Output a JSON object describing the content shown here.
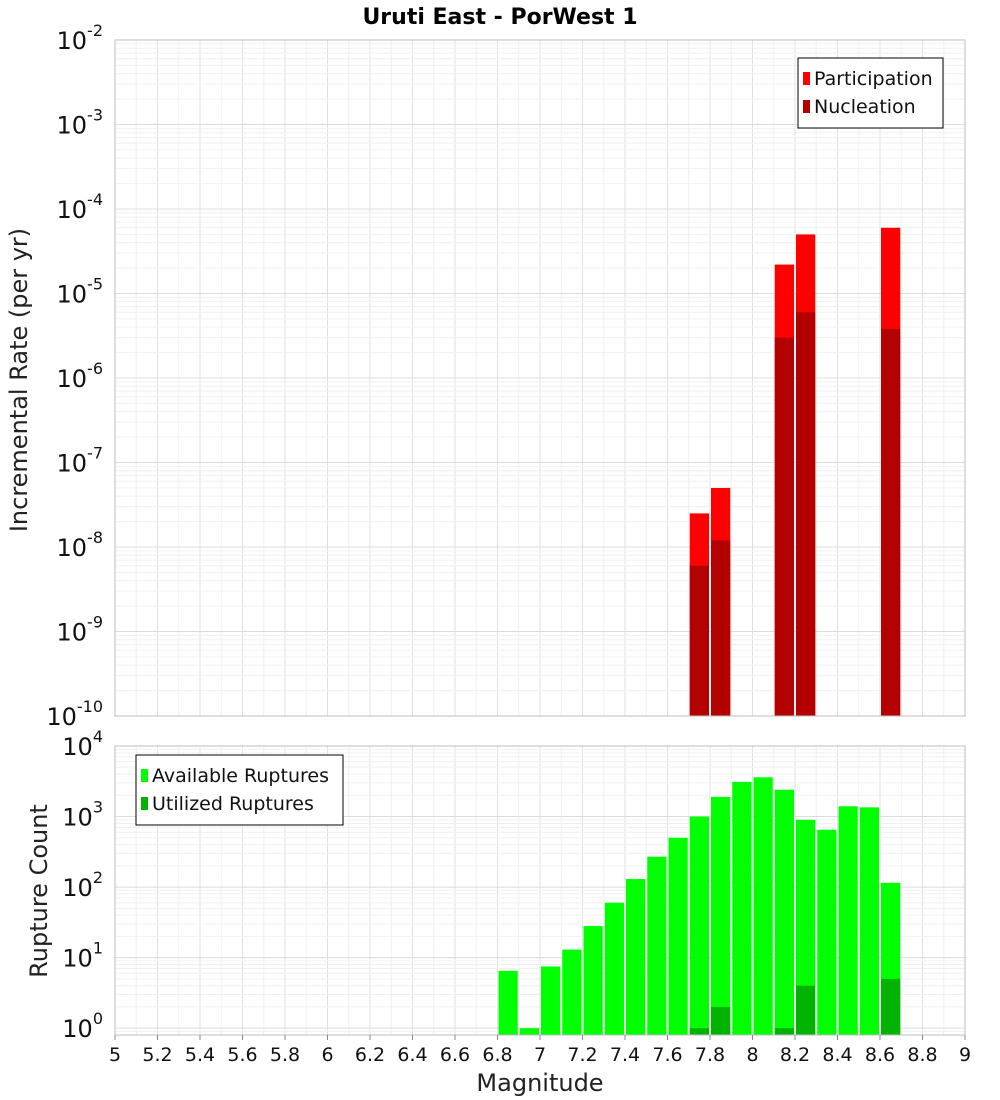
{
  "title": "Uruti East - PorWest 1",
  "colors": {
    "participation": "#ff0000",
    "nucleation": "#b30000",
    "available": "#00ff00",
    "utilized": "#00b300",
    "grid": "#e6e6e6",
    "frame": "#bdbdbd"
  },
  "chart_data": [
    {
      "type": "bar",
      "panel": "rates",
      "ylabel": "Incremental Rate (per yr)",
      "yscale": "log",
      "ylim": [
        1e-10,
        0.01
      ],
      "yticks": [
        {
          "base": "10",
          "exp": "-10"
        },
        {
          "base": "10",
          "exp": "-9"
        },
        {
          "base": "10",
          "exp": "-8"
        },
        {
          "base": "10",
          "exp": "-7"
        },
        {
          "base": "10",
          "exp": "-6"
        },
        {
          "base": "10",
          "exp": "-5"
        },
        {
          "base": "10",
          "exp": "-4"
        },
        {
          "base": "10",
          "exp": "-3"
        },
        {
          "base": "10",
          "exp": "-2"
        }
      ],
      "legend": {
        "position": "top-right",
        "items": [
          {
            "label": "Participation",
            "color_key": "participation"
          },
          {
            "label": "Nucleation",
            "color_key": "nucleation"
          }
        ]
      },
      "series": [
        {
          "name": "Participation",
          "color_key": "participation",
          "x": [
            7.75,
            7.85,
            8.15,
            8.25,
            8.65
          ],
          "values": [
            2.5e-08,
            5e-08,
            2.2e-05,
            5e-05,
            6e-05
          ]
        },
        {
          "name": "Nucleation",
          "color_key": "nucleation",
          "x": [
            7.75,
            7.85,
            8.15,
            8.25,
            8.65
          ],
          "values": [
            6e-09,
            1.2e-08,
            3e-06,
            6e-06,
            3.8e-06
          ]
        }
      ]
    },
    {
      "type": "bar",
      "panel": "counts",
      "ylabel": "Rupture Count",
      "xlabel": "Magnitude",
      "yscale": "log",
      "ylim": [
        0.8,
        10000
      ],
      "yticks": [
        {
          "base": "10",
          "exp": "0"
        },
        {
          "base": "10",
          "exp": "1"
        },
        {
          "base": "10",
          "exp": "2"
        },
        {
          "base": "10",
          "exp": "3"
        },
        {
          "base": "10",
          "exp": "4"
        }
      ],
      "xlim": [
        5,
        9
      ],
      "xticks": [
        "5",
        "5.2",
        "5.4",
        "5.6",
        "5.8",
        "6",
        "6.2",
        "6.4",
        "6.6",
        "6.8",
        "7",
        "7.2",
        "7.4",
        "7.6",
        "7.8",
        "8",
        "8.2",
        "8.4",
        "8.6",
        "8.8",
        "9"
      ],
      "legend": {
        "position": "top-left",
        "items": [
          {
            "label": "Available Ruptures",
            "color_key": "available"
          },
          {
            "label": "Utilized Ruptures",
            "color_key": "utilized"
          }
        ]
      },
      "series": [
        {
          "name": "Available Ruptures",
          "color_key": "available",
          "x": [
            6.85,
            6.95,
            7.05,
            7.15,
            7.25,
            7.35,
            7.45,
            7.55,
            7.65,
            7.75,
            7.85,
            7.95,
            8.05,
            8.15,
            8.25,
            8.35,
            8.45,
            8.55,
            8.65
          ],
          "values": [
            6.5,
            1,
            7.5,
            13,
            28,
            60,
            130,
            270,
            500,
            1000,
            1900,
            3100,
            3600,
            2400,
            900,
            650,
            1400,
            1350,
            115
          ]
        },
        {
          "name": "Utilized Ruptures",
          "color_key": "utilized",
          "x": [
            7.75,
            7.85,
            8.15,
            8.25,
            8.65
          ],
          "values": [
            1,
            2,
            1,
            4,
            5
          ]
        }
      ]
    }
  ]
}
